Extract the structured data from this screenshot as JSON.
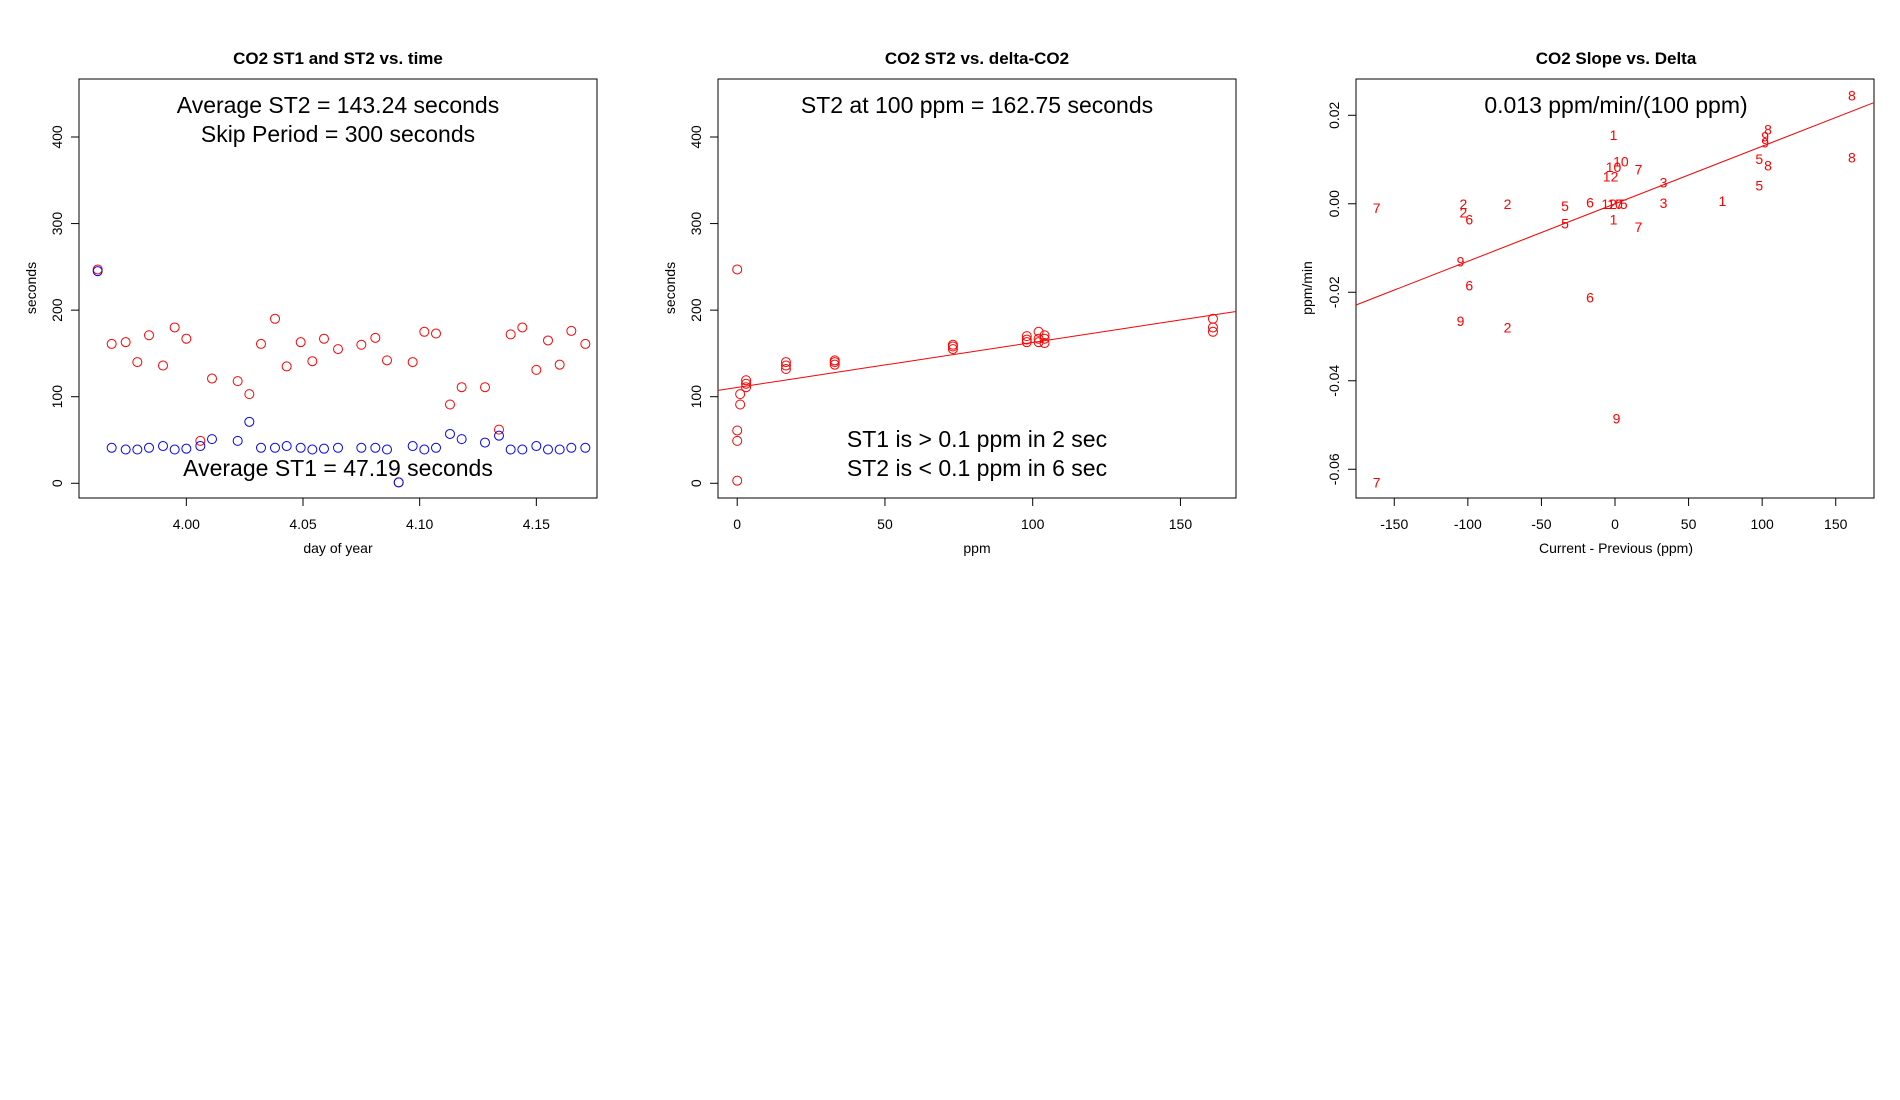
{
  "colors": {
    "series_st2": "#ff0000",
    "series_st1": "#0000ff",
    "fit_line": "#ff0000",
    "axis": "#000000"
  },
  "chart_data": [
    {
      "type": "scatter",
      "title": "CO2 ST1 and ST2 vs. time",
      "xlabel": "day of year",
      "ylabel": "seconds",
      "xlim": [
        3.954,
        4.176
      ],
      "ylim": [
        -17,
        467
      ],
      "xticks": [
        4.0,
        4.05,
        4.1,
        4.15
      ],
      "xtick_labels": [
        "4.00",
        "4.05",
        "4.10",
        "4.15"
      ],
      "yticks": [
        0,
        100,
        200,
        300,
        400
      ],
      "ytick_labels": [
        "0",
        "100",
        "200",
        "300",
        "400"
      ],
      "annotations": [
        "Average ST2 =  143.24  seconds",
        "Skip Period =  300  seconds",
        "Average ST1 =  47.19  seconds"
      ],
      "series": [
        {
          "color": "#ff0000",
          "points": [
            [
              3.962,
              247
            ],
            [
              3.968,
              161
            ],
            [
              3.974,
              163
            ],
            [
              3.979,
              140
            ],
            [
              3.984,
              171
            ],
            [
              3.99,
              136
            ],
            [
              3.995,
              180
            ],
            [
              4.0,
              167
            ],
            [
              4.006,
              49
            ],
            [
              4.011,
              121
            ],
            [
              4.022,
              118
            ],
            [
              4.027,
              103
            ],
            [
              4.032,
              161
            ],
            [
              4.038,
              190
            ],
            [
              4.043,
              135
            ],
            [
              4.049,
              163
            ],
            [
              4.054,
              141
            ],
            [
              4.059,
              167
            ],
            [
              4.065,
              155
            ],
            [
              4.075,
              160
            ],
            [
              4.081,
              168
            ],
            [
              4.086,
              142
            ],
            [
              4.091,
              1
            ],
            [
              4.097,
              140
            ],
            [
              4.102,
              175
            ],
            [
              4.107,
              173
            ],
            [
              4.113,
              91
            ],
            [
              4.118,
              111
            ],
            [
              4.128,
              111
            ],
            [
              4.134,
              62
            ],
            [
              4.139,
              172
            ],
            [
              4.144,
              180
            ],
            [
              4.15,
              131
            ],
            [
              4.155,
              165
            ],
            [
              4.16,
              137
            ],
            [
              4.165,
              176
            ],
            [
              4.171,
              161
            ]
          ]
        },
        {
          "color": "#0000ff",
          "points": [
            [
              3.962,
              245
            ],
            [
              3.968,
              41
            ],
            [
              3.974,
              39
            ],
            [
              3.979,
              39
            ],
            [
              3.984,
              41
            ],
            [
              3.99,
              43
            ],
            [
              3.995,
              39
            ],
            [
              4.0,
              40
            ],
            [
              4.006,
              43
            ],
            [
              4.011,
              51
            ],
            [
              4.022,
              49
            ],
            [
              4.027,
              71
            ],
            [
              4.032,
              41
            ],
            [
              4.038,
              41
            ],
            [
              4.043,
              43
            ],
            [
              4.049,
              41
            ],
            [
              4.054,
              39
            ],
            [
              4.059,
              40
            ],
            [
              4.065,
              41
            ],
            [
              4.075,
              41
            ],
            [
              4.081,
              41
            ],
            [
              4.086,
              39
            ],
            [
              4.091,
              1
            ],
            [
              4.097,
              43
            ],
            [
              4.102,
              39
            ],
            [
              4.107,
              41
            ],
            [
              4.113,
              57
            ],
            [
              4.118,
              51
            ],
            [
              4.128,
              47
            ],
            [
              4.134,
              55
            ],
            [
              4.139,
              39
            ],
            [
              4.144,
              39
            ],
            [
              4.15,
              43
            ],
            [
              4.155,
              39
            ],
            [
              4.16,
              39
            ],
            [
              4.165,
              41
            ],
            [
              4.171,
              41
            ]
          ]
        }
      ]
    },
    {
      "type": "scatter",
      "title": "CO2 ST2 vs. delta-CO2",
      "xlabel": "ppm",
      "ylabel": "seconds",
      "xlim": [
        -6.5,
        168.8
      ],
      "ylim": [
        -17,
        467
      ],
      "xticks": [
        0,
        50,
        100,
        150
      ],
      "xtick_labels": [
        "0",
        "50",
        "100",
        "150"
      ],
      "yticks": [
        0,
        100,
        200,
        300,
        400
      ],
      "ytick_labels": [
        "0",
        "100",
        "200",
        "300",
        "400"
      ],
      "annotations": [
        "ST2 at 100 ppm =  162.75  seconds",
        "ST1 is > 0.1 ppm in 2 sec",
        "ST2 is < 0.1 ppm in 6 sec"
      ],
      "fit_line": {
        "intercept": 110.7,
        "slope": 0.52
      },
      "series": [
        {
          "color": "#ff0000",
          "points": [
            [
              0,
              247
            ],
            [
              0,
              61
            ],
            [
              0,
              49
            ],
            [
              0,
              3
            ],
            [
              1,
              91
            ],
            [
              1,
              103
            ],
            [
              3,
              111
            ],
            [
              3,
              115
            ],
            [
              3,
              119
            ],
            [
              16.5,
              132
            ],
            [
              16.5,
              136
            ],
            [
              16.5,
              140
            ],
            [
              33,
              137
            ],
            [
              33,
              140
            ],
            [
              33,
              142
            ],
            [
              73,
              155
            ],
            [
              73,
              158
            ],
            [
              73,
              160
            ],
            [
              98,
              163
            ],
            [
              98,
              166
            ],
            [
              98,
              170
            ],
            [
              102,
              163
            ],
            [
              102,
              167
            ],
            [
              102,
              175
            ],
            [
              104,
              162
            ],
            [
              104,
              167
            ],
            [
              104,
              171
            ],
            [
              161,
              175
            ],
            [
              161,
              180
            ],
            [
              161,
              190
            ]
          ]
        }
      ]
    },
    {
      "type": "scatter",
      "title": "CO2 Slope vs. Delta",
      "xlabel": "Current - Previous (ppm)",
      "ylabel": "ppm/min",
      "xlim": [
        -176,
        176
      ],
      "ylim": [
        -0.0665,
        0.0282
      ],
      "xticks": [
        -150,
        -100,
        -50,
        0,
        50,
        100,
        150
      ],
      "xtick_labels": [
        "-150",
        "-100",
        "-50",
        "0",
        "50",
        "100",
        "150"
      ],
      "yticks": [
        -0.06,
        -0.04,
        -0.02,
        0.0,
        0.02
      ],
      "ytick_labels": [
        "-0.06",
        "-0.04",
        "-0.02",
        "0.00",
        "0.02"
      ],
      "annotations": [
        "0.013  ppm/min/(100 ppm)"
      ],
      "fit_line": {
        "intercept": 0.0,
        "slope": 0.00013
      },
      "series": [
        {
          "color": "#ff0000",
          "points": [
            {
              "x": -162,
              "y": -0.001,
              "label": "7"
            },
            {
              "x": -162,
              "y": -0.063,
              "label": "7"
            },
            {
              "x": -103,
              "y": 0.0,
              "label": "2"
            },
            {
              "x": -103,
              "y": -0.002,
              "label": "2"
            },
            {
              "x": -99,
              "y": -0.0035,
              "label": "6"
            },
            {
              "x": -99,
              "y": -0.0185,
              "label": "6"
            },
            {
              "x": -105,
              "y": -0.013,
              "label": "9"
            },
            {
              "x": -105,
              "y": -0.0265,
              "label": "9"
            },
            {
              "x": -73,
              "y": -0.0001,
              "label": "2"
            },
            {
              "x": -73,
              "y": -0.028,
              "label": "2"
            },
            {
              "x": -34,
              "y": -0.0005,
              "label": "5"
            },
            {
              "x": -34,
              "y": -0.0045,
              "label": "5"
            },
            {
              "x": -17,
              "y": 0.0003,
              "label": "6"
            },
            {
              "x": -17,
              "y": -0.0212,
              "label": "6"
            },
            {
              "x": -1,
              "y": 0.0155,
              "label": "1"
            },
            {
              "x": -1,
              "y": 0.0083,
              "label": "10"
            },
            {
              "x": 4,
              "y": 0.0095,
              "label": "10"
            },
            {
              "x": -3,
              "y": 0.0062,
              "label": "12"
            },
            {
              "x": -1,
              "y": -0.0035,
              "label": "1"
            },
            {
              "x": 1,
              "y": -0.0485,
              "label": "9"
            },
            {
              "x": -4,
              "y": -0.0001,
              "label": "12"
            },
            {
              "x": 0,
              "y": -0.0001,
              "label": "10"
            },
            {
              "x": 3,
              "y": -0.0001,
              "label": "7"
            },
            {
              "x": 6,
              "y": 0.0,
              "label": "5"
            },
            {
              "x": 16,
              "y": 0.0077,
              "label": "7"
            },
            {
              "x": 16,
              "y": -0.0052,
              "label": "7"
            },
            {
              "x": 33,
              "y": 0.0048,
              "label": "3"
            },
            {
              "x": 33,
              "y": 0.0002,
              "label": "3"
            },
            {
              "x": 73,
              "y": 0.0006,
              "label": "1"
            },
            {
              "x": 98,
              "y": 0.0101,
              "label": "5"
            },
            {
              "x": 98,
              "y": 0.0041,
              "label": "5"
            },
            {
              "x": 102,
              "y": 0.0138,
              "label": "9"
            },
            {
              "x": 102,
              "y": 0.0152,
              "label": "9"
            },
            {
              "x": 104,
              "y": 0.0168,
              "label": "8"
            },
            {
              "x": 104,
              "y": 0.0086,
              "label": "8"
            },
            {
              "x": 161,
              "y": 0.0245,
              "label": "8"
            },
            {
              "x": 161,
              "y": 0.0105,
              "label": "8"
            }
          ]
        }
      ]
    }
  ]
}
